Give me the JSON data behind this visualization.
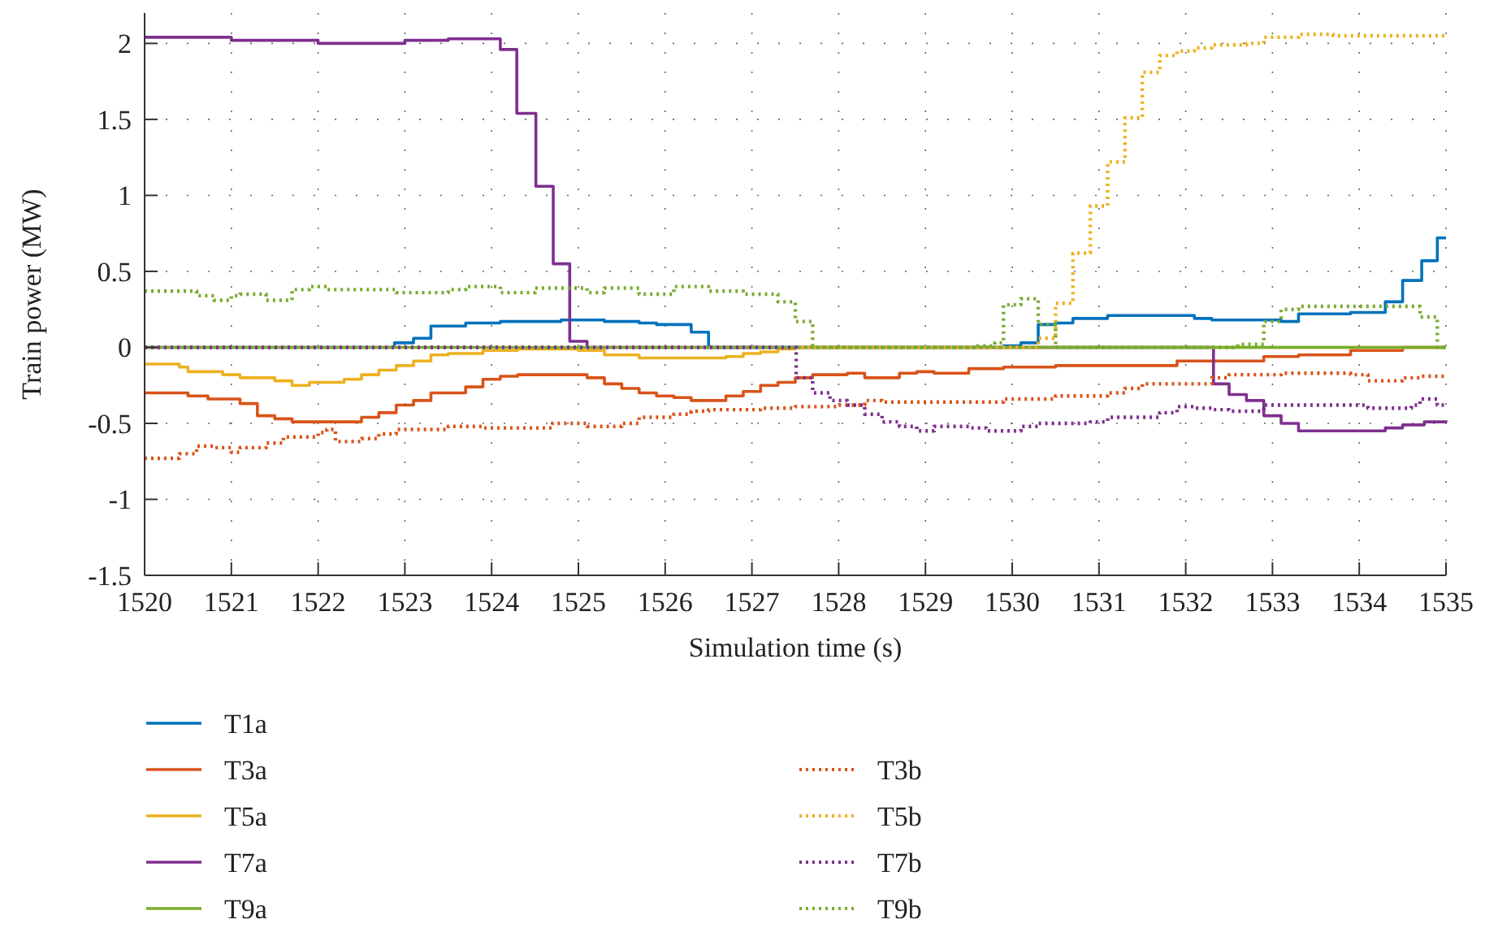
{
  "chart_data": {
    "type": "step",
    "xlabel": "Simulation time (s)",
    "ylabel": "Train power (MW)",
    "xlim": [
      1520,
      1535
    ],
    "xticks": [
      1520,
      1521,
      1522,
      1523,
      1524,
      1525,
      1526,
      1527,
      1528,
      1529,
      1530,
      1531,
      1532,
      1533,
      1534,
      1535
    ],
    "ylim": [
      -1.5,
      2.2
    ],
    "yticks": [
      -1.5,
      -1,
      -0.5,
      0,
      0.5,
      1,
      1.5,
      2
    ],
    "grid": true,
    "legend": "bottom",
    "series": [
      {
        "name": "T1a",
        "color": "#0072bd",
        "line_style": "solid",
        "x": [
          1520,
          1522.88,
          1523.1,
          1523.3,
          1523.7,
          1524.1,
          1524.8,
          1525.3,
          1525.7,
          1525.9,
          1526.3,
          1526.5,
          1529.9,
          1530.1,
          1530.3,
          1530.5,
          1530.7,
          1531.1,
          1531.7,
          1532.1,
          1532.3,
          1533.1,
          1533.3,
          1533.9,
          1534.3,
          1534.5,
          1534.72,
          1534.9,
          1535
        ],
        "values": [
          0,
          0.03,
          0.06,
          0.14,
          0.16,
          0.17,
          0.18,
          0.17,
          0.16,
          0.15,
          0.1,
          0,
          0.01,
          0.03,
          0.15,
          0.16,
          0.19,
          0.21,
          0.21,
          0.19,
          0.18,
          0.17,
          0.22,
          0.23,
          0.3,
          0.44,
          0.57,
          0.72,
          0.72
        ]
      },
      {
        "name": "T3a",
        "color": "#d95319",
        "line_style": "solid",
        "x": [
          1520,
          1520.5,
          1520.73,
          1521.1,
          1521.3,
          1521.5,
          1521.7,
          1522.5,
          1522.7,
          1522.9,
          1523.1,
          1523.3,
          1523.7,
          1523.9,
          1524.1,
          1524.3,
          1525.1,
          1525.3,
          1525.5,
          1525.7,
          1525.9,
          1526.1,
          1526.3,
          1526.7,
          1526.9,
          1527.1,
          1527.3,
          1527.5,
          1527.7,
          1528.1,
          1528.3,
          1528.7,
          1528.9,
          1529.1,
          1529.5,
          1529.9,
          1530.5,
          1531.9,
          1532.9,
          1533.3,
          1533.9,
          1534.5,
          1535
        ],
        "values": [
          -0.3,
          -0.32,
          -0.34,
          -0.37,
          -0.45,
          -0.47,
          -0.49,
          -0.46,
          -0.43,
          -0.38,
          -0.35,
          -0.3,
          -0.26,
          -0.21,
          -0.19,
          -0.18,
          -0.2,
          -0.24,
          -0.27,
          -0.3,
          -0.32,
          -0.33,
          -0.35,
          -0.32,
          -0.29,
          -0.25,
          -0.23,
          -0.2,
          -0.18,
          -0.17,
          -0.2,
          -0.17,
          -0.16,
          -0.17,
          -0.14,
          -0.13,
          -0.12,
          -0.09,
          -0.06,
          -0.05,
          -0.02,
          0,
          0
        ]
      },
      {
        "name": "T5a",
        "color": "#edb120",
        "line_style": "solid",
        "x": [
          1520,
          1520.4,
          1520.5,
          1520.9,
          1521.1,
          1521.5,
          1521.7,
          1521.9,
          1522.3,
          1522.5,
          1522.7,
          1522.9,
          1523.1,
          1523.3,
          1523.5,
          1523.9,
          1524.3,
          1525,
          1525.3,
          1525.7,
          1526.7,
          1526.9,
          1527.1,
          1527.3,
          1527.5,
          1535
        ],
        "values": [
          -0.11,
          -0.13,
          -0.16,
          -0.18,
          -0.2,
          -0.22,
          -0.25,
          -0.23,
          -0.21,
          -0.18,
          -0.15,
          -0.12,
          -0.09,
          -0.05,
          -0.04,
          -0.02,
          -0.01,
          -0.02,
          -0.05,
          -0.07,
          -0.06,
          -0.04,
          -0.03,
          -0.01,
          0,
          0
        ]
      },
      {
        "name": "T7a",
        "color": "#7e2f8e",
        "line_style": "solid",
        "x": [
          1520,
          1521,
          1522,
          1523,
          1523.5,
          1524.1,
          1524.29,
          1524.51,
          1524.71,
          1524.9,
          1525.1,
          1532.32,
          1532.5,
          1532.7,
          1532.9,
          1533.1,
          1533.3,
          1534.3,
          1534.5,
          1534.75,
          1535
        ],
        "values": [
          2.04,
          2.02,
          2,
          2.02,
          2.03,
          1.96,
          1.54,
          1.06,
          0.55,
          0.04,
          0,
          -0.24,
          -0.31,
          -0.35,
          -0.45,
          -0.5,
          -0.55,
          -0.53,
          -0.51,
          -0.49,
          -0.48
        ]
      },
      {
        "name": "T9a",
        "color": "#77ac30",
        "line_style": "solid",
        "x": [
          1520,
          1535
        ],
        "values": [
          0,
          0
        ]
      },
      {
        "name": "T3b",
        "color": "#d95319",
        "line_style": "dotted",
        "x": [
          1520,
          1520.4,
          1520.6,
          1520.8,
          1521,
          1521.1,
          1521.4,
          1521.6,
          1522,
          1522.1,
          1522.2,
          1522.5,
          1522.7,
          1522.9,
          1523.5,
          1523.9,
          1524.7,
          1525.1,
          1525.5,
          1525.7,
          1526.1,
          1526.3,
          1526.5,
          1527.1,
          1527.5,
          1528,
          1528.3,
          1528.5,
          1529.9,
          1530.5,
          1531.1,
          1531.3,
          1531.5,
          1532.3,
          1532.5,
          1533.1,
          1533.9,
          1534.1,
          1534.5,
          1534.7,
          1535
        ],
        "values": [
          -0.73,
          -0.7,
          -0.65,
          -0.66,
          -0.69,
          -0.66,
          -0.63,
          -0.59,
          -0.56,
          -0.54,
          -0.62,
          -0.6,
          -0.57,
          -0.54,
          -0.52,
          -0.53,
          -0.5,
          -0.52,
          -0.5,
          -0.46,
          -0.44,
          -0.42,
          -0.41,
          -0.4,
          -0.39,
          -0.38,
          -0.35,
          -0.36,
          -0.34,
          -0.32,
          -0.3,
          -0.27,
          -0.24,
          -0.2,
          -0.18,
          -0.17,
          -0.18,
          -0.22,
          -0.2,
          -0.19,
          -0.19
        ]
      },
      {
        "name": "T5b",
        "color": "#edb120",
        "line_style": "dotted",
        "x": [
          1520,
          1530.3,
          1530.5,
          1530.7,
          1530.9,
          1531.1,
          1531.3,
          1531.5,
          1531.7,
          1531.9,
          1532.1,
          1532.3,
          1532.7,
          1532.9,
          1533.3,
          1533.7,
          1535
        ],
        "values": [
          0,
          0.06,
          0.29,
          0.62,
          0.93,
          1.22,
          1.51,
          1.81,
          1.92,
          1.95,
          1.97,
          1.99,
          2,
          2.04,
          2.06,
          2.05,
          2.04
        ]
      },
      {
        "name": "T7b",
        "color": "#7e2f8e",
        "line_style": "dotted",
        "x": [
          1520,
          1527.51,
          1527.7,
          1527.9,
          1528.1,
          1528.3,
          1528.5,
          1528.7,
          1528.9,
          1529.1,
          1529.5,
          1529.7,
          1530.1,
          1530.3,
          1530.9,
          1531.1,
          1531.7,
          1531.9,
          1532.1,
          1532.3,
          1532.5,
          1532.9,
          1533.7,
          1534.1,
          1534.6,
          1534.7,
          1534.9,
          1535
        ],
        "values": [
          0,
          -0.2,
          -0.3,
          -0.35,
          -0.38,
          -0.44,
          -0.49,
          -0.52,
          -0.55,
          -0.52,
          -0.53,
          -0.55,
          -0.52,
          -0.5,
          -0.49,
          -0.46,
          -0.43,
          -0.39,
          -0.4,
          -0.41,
          -0.42,
          -0.38,
          -0.38,
          -0.4,
          -0.38,
          -0.34,
          -0.38,
          -0.38
        ]
      },
      {
        "name": "T9b",
        "color": "#77ac30",
        "line_style": "dotted",
        "x": [
          1520,
          1520.6,
          1520.8,
          1521,
          1521.1,
          1521.4,
          1521.7,
          1521.9,
          1522.1,
          1522.9,
          1523.5,
          1523.7,
          1524.1,
          1524.5,
          1525.1,
          1525.3,
          1525.7,
          1526.1,
          1526.5,
          1526.9,
          1527.3,
          1527.5,
          1527.7,
          1529.6,
          1529.8,
          1529.9,
          1530.1,
          1530.3,
          1530.5,
          1532.6,
          1532.9,
          1533.1,
          1533.3,
          1534.7,
          1534.9,
          1535
        ],
        "values": [
          0.37,
          0.34,
          0.31,
          0.34,
          0.35,
          0.31,
          0.38,
          0.4,
          0.38,
          0.36,
          0.38,
          0.4,
          0.36,
          0.39,
          0.36,
          0.39,
          0.35,
          0.4,
          0.37,
          0.35,
          0.3,
          0.17,
          0,
          0.01,
          0.03,
          0.28,
          0.32,
          0.15,
          0,
          0.02,
          0.17,
          0.25,
          0.27,
          0.2,
          0,
          0
        ]
      }
    ]
  }
}
